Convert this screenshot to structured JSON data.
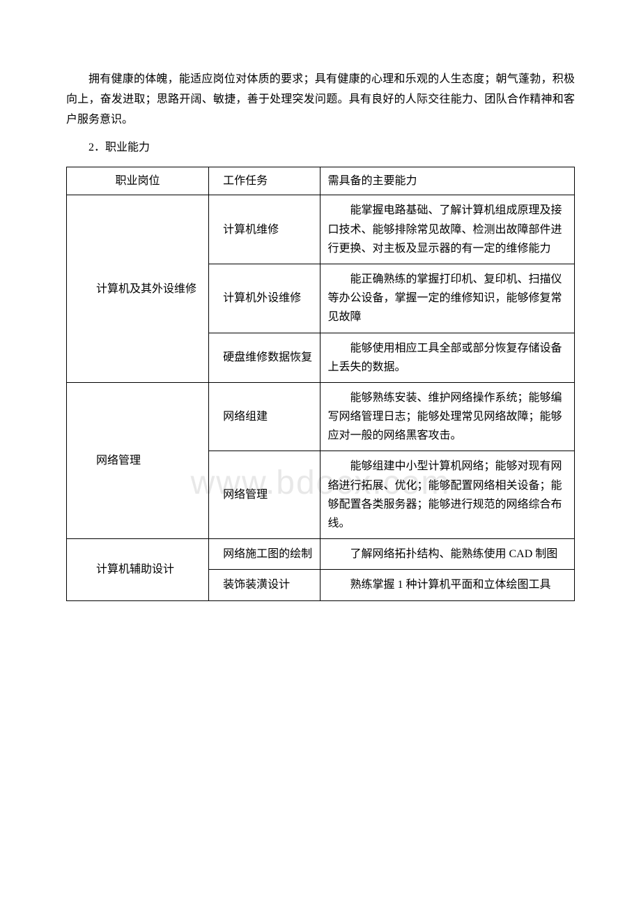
{
  "watermark": "www.bdocx.com",
  "intro_paragraph": "拥有健康的体魄，能适应岗位对体质的要求；具有健康的心理和乐观的人生态度；朝气蓬勃，积极向上，奋发进取；思路开阔、敏捷，善于处理突发问题。具有良好的人际交往能力、团队合作精神和客户服务意识。",
  "section_title": "2．职业能力",
  "table": {
    "headers": {
      "col1": "职业岗位",
      "col2": "工作任务",
      "col3": "需具备的主要能力"
    },
    "groups": [
      {
        "position": "计算机及其外设维修",
        "rows": [
          {
            "task": "计算机维修",
            "ability": "能掌握电路基础、了解计算机组成原理及接口技术、能够排除常见故障、检测出故障部件进行更换、对主板及显示器的有一定的维修能力"
          },
          {
            "task": "计算机外设维修",
            "ability": "能正确熟练的掌握打印机、复印机、扫描仪等办公设备，掌握一定的维修知识，能够修复常见故障"
          },
          {
            "task": "硬盘维修数据恢复",
            "ability": "能够使用相应工具全部或部分恢复存储设备上丢失的数据。"
          }
        ]
      },
      {
        "position": "网络管理",
        "rows": [
          {
            "task": "网络组建",
            "ability": "能够熟练安装、维护网络操作系统；能够编写网络管理日志；能够处理常见网络故障；能够应对一般的网络黑客攻击。"
          },
          {
            "task": "网络管理",
            "ability": "能够组建中小型计算机网络；能够对现有网络进行拓展、优化；能够配置网络相关设备；能够配置各类服务器；能够进行规范的网络综合布线。"
          }
        ]
      },
      {
        "position": "计算机辅助设计",
        "rows": [
          {
            "task": "网络施工图的绘制",
            "ability": "了解网络拓扑结构、能熟练使用 CAD 制图"
          },
          {
            "task": "装饰装潢设计",
            "ability": "熟练掌握 1 种计算机平面和立体绘图工具"
          }
        ]
      }
    ]
  }
}
